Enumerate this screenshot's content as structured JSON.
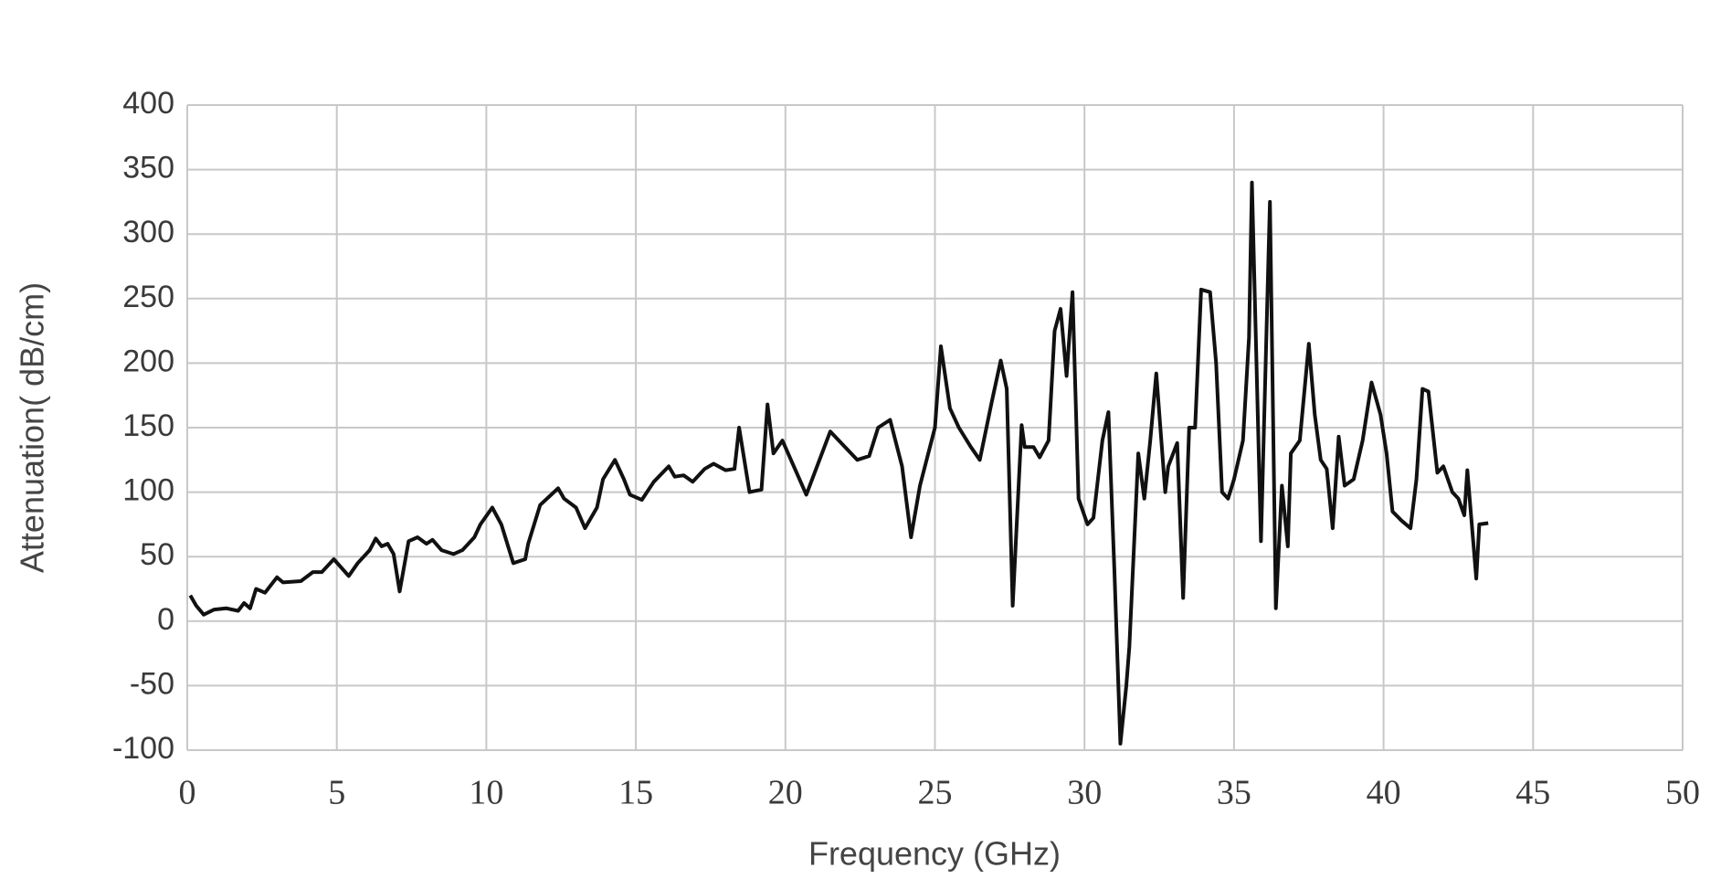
{
  "chart_data": {
    "type": "line",
    "xlabel": "Frequency (GHz)",
    "ylabel": "Attenuation( dB/cm)",
    "x": [
      0.1,
      0.3,
      0.55,
      0.9,
      1.3,
      1.7,
      1.9,
      2.1,
      2.3,
      2.6,
      3,
      3.2,
      3.8,
      4.2,
      4.5,
      4.9,
      5.4,
      5.7,
      6.1,
      6.3,
      6.5,
      6.7,
      6.9,
      7.1,
      7.4,
      7.7,
      8,
      8.2,
      8.5,
      8.9,
      9.2,
      9.6,
      9.8,
      10.2,
      10.5,
      10.9,
      11.3,
      11.4,
      11.8,
      12.4,
      12.6,
      13,
      13.3,
      13.7,
      13.9,
      14.3,
      14.6,
      14.8,
      15.2,
      15.6,
      16.1,
      16.3,
      16.6,
      16.9,
      17.3,
      17.6,
      18,
      18.3,
      18.45,
      18.8,
      19.2,
      19.4,
      19.6,
      19.9,
      20.7,
      21.5,
      22.4,
      22.8,
      23.1,
      23.5,
      23.9,
      24.2,
      24.5,
      25,
      25.2,
      25.5,
      25.8,
      26.2,
      26.5,
      26.9,
      27.2,
      27.4,
      27.6,
      27.9,
      28,
      28.3,
      28.5,
      28.8,
      29,
      29.2,
      29.4,
      29.6,
      29.8,
      30.1,
      30.3,
      30.6,
      30.8,
      31,
      31.2,
      31.4,
      31.5,
      31.8,
      32,
      32.2,
      32.4,
      32.7,
      32.8,
      33.1,
      33.3,
      33.5,
      33.7,
      33.9,
      34.2,
      34.4,
      34.6,
      34.8,
      35,
      35.3,
      35.5,
      35.6,
      35.9,
      36.2,
      36.4,
      36.6,
      36.8,
      36.9,
      37.2,
      37.5,
      37.7,
      37.9,
      38.1,
      38.3,
      38.5,
      38.7,
      39,
      39.3,
      39.6,
      39.9,
      40.1,
      40.3,
      40.6,
      40.9,
      41.1,
      41.3,
      41.5,
      41.8,
      42,
      42.3,
      42.5,
      42.7,
      42.8,
      43.1,
      43.2,
      43.5
    ],
    "values": [
      20,
      12,
      5,
      9,
      10,
      8,
      14,
      10,
      25,
      22,
      34,
      30,
      31,
      38,
      38,
      48,
      35,
      45,
      55,
      64,
      58,
      60,
      52,
      23,
      62,
      65,
      60,
      63,
      55,
      52,
      55,
      65,
      75,
      88,
      75,
      45,
      48,
      60,
      90,
      103,
      95,
      88,
      72,
      88,
      110,
      125,
      110,
      98,
      94,
      108,
      120,
      112,
      113,
      108,
      118,
      122,
      117,
      118,
      150,
      100,
      102,
      168,
      130,
      140,
      98,
      147,
      125,
      128,
      150,
      156,
      120,
      65,
      105,
      150,
      213,
      165,
      150,
      135,
      125,
      170,
      202,
      180,
      12,
      152,
      135,
      135,
      127,
      140,
      225,
      242,
      190,
      255,
      95,
      75,
      80,
      140,
      162,
      40,
      -95,
      -50,
      -20,
      130,
      95,
      140,
      192,
      100,
      120,
      138,
      18,
      150,
      150,
      257,
      255,
      200,
      100,
      95,
      110,
      140,
      220,
      340,
      62,
      325,
      10,
      105,
      58,
      130,
      140,
      215,
      160,
      125,
      118,
      72,
      143,
      105,
      110,
      140,
      185,
      160,
      130,
      85,
      78,
      72,
      110,
      180,
      178,
      115,
      120,
      100,
      95,
      82,
      117,
      33,
      75,
      76
    ],
    "color": "#111111",
    "xlim": [
      0,
      50
    ],
    "xticks": [
      0,
      5,
      10,
      15,
      20,
      25,
      30,
      35,
      40,
      45,
      50
    ],
    "ylim": [
      -100,
      400
    ],
    "yticks": [
      -100,
      -50,
      0,
      50,
      100,
      150,
      200,
      250,
      300,
      350,
      400
    ],
    "grid": true
  }
}
